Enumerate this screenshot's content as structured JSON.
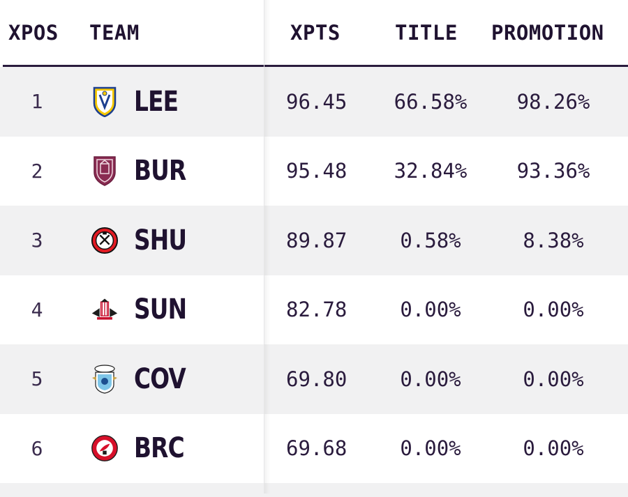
{
  "headers": {
    "xpos": "XPOS",
    "team": "TEAM",
    "xpts": "XPTS",
    "title": "TITLE",
    "promotion": "PROMOTION"
  },
  "rows": [
    {
      "pos": "1",
      "team": "LEE",
      "crest": "leeds-crest-icon",
      "xpts": "96.45",
      "title": "66.58%",
      "promotion": "98.26%"
    },
    {
      "pos": "2",
      "team": "BUR",
      "crest": "burnley-crest-icon",
      "xpts": "95.48",
      "title": "32.84%",
      "promotion": "93.36%"
    },
    {
      "pos": "3",
      "team": "SHU",
      "crest": "sheffield-united-crest-icon",
      "xpts": "89.87",
      "title": "0.58%",
      "promotion": "8.38%"
    },
    {
      "pos": "4",
      "team": "SUN",
      "crest": "sunderland-crest-icon",
      "xpts": "82.78",
      "title": "0.00%",
      "promotion": "0.00%"
    },
    {
      "pos": "5",
      "team": "COV",
      "crest": "coventry-crest-icon",
      "xpts": "69.80",
      "title": "0.00%",
      "promotion": "0.00%"
    },
    {
      "pos": "6",
      "team": "BRC",
      "crest": "bristol-city-crest-icon",
      "xpts": "69.68",
      "title": "0.00%",
      "promotion": "0.00%"
    }
  ],
  "colors": {
    "header_text": "#1f1230",
    "rule": "#2a1b3d",
    "row_shade": "#f1f1f2",
    "row_plain": "#ffffff"
  }
}
